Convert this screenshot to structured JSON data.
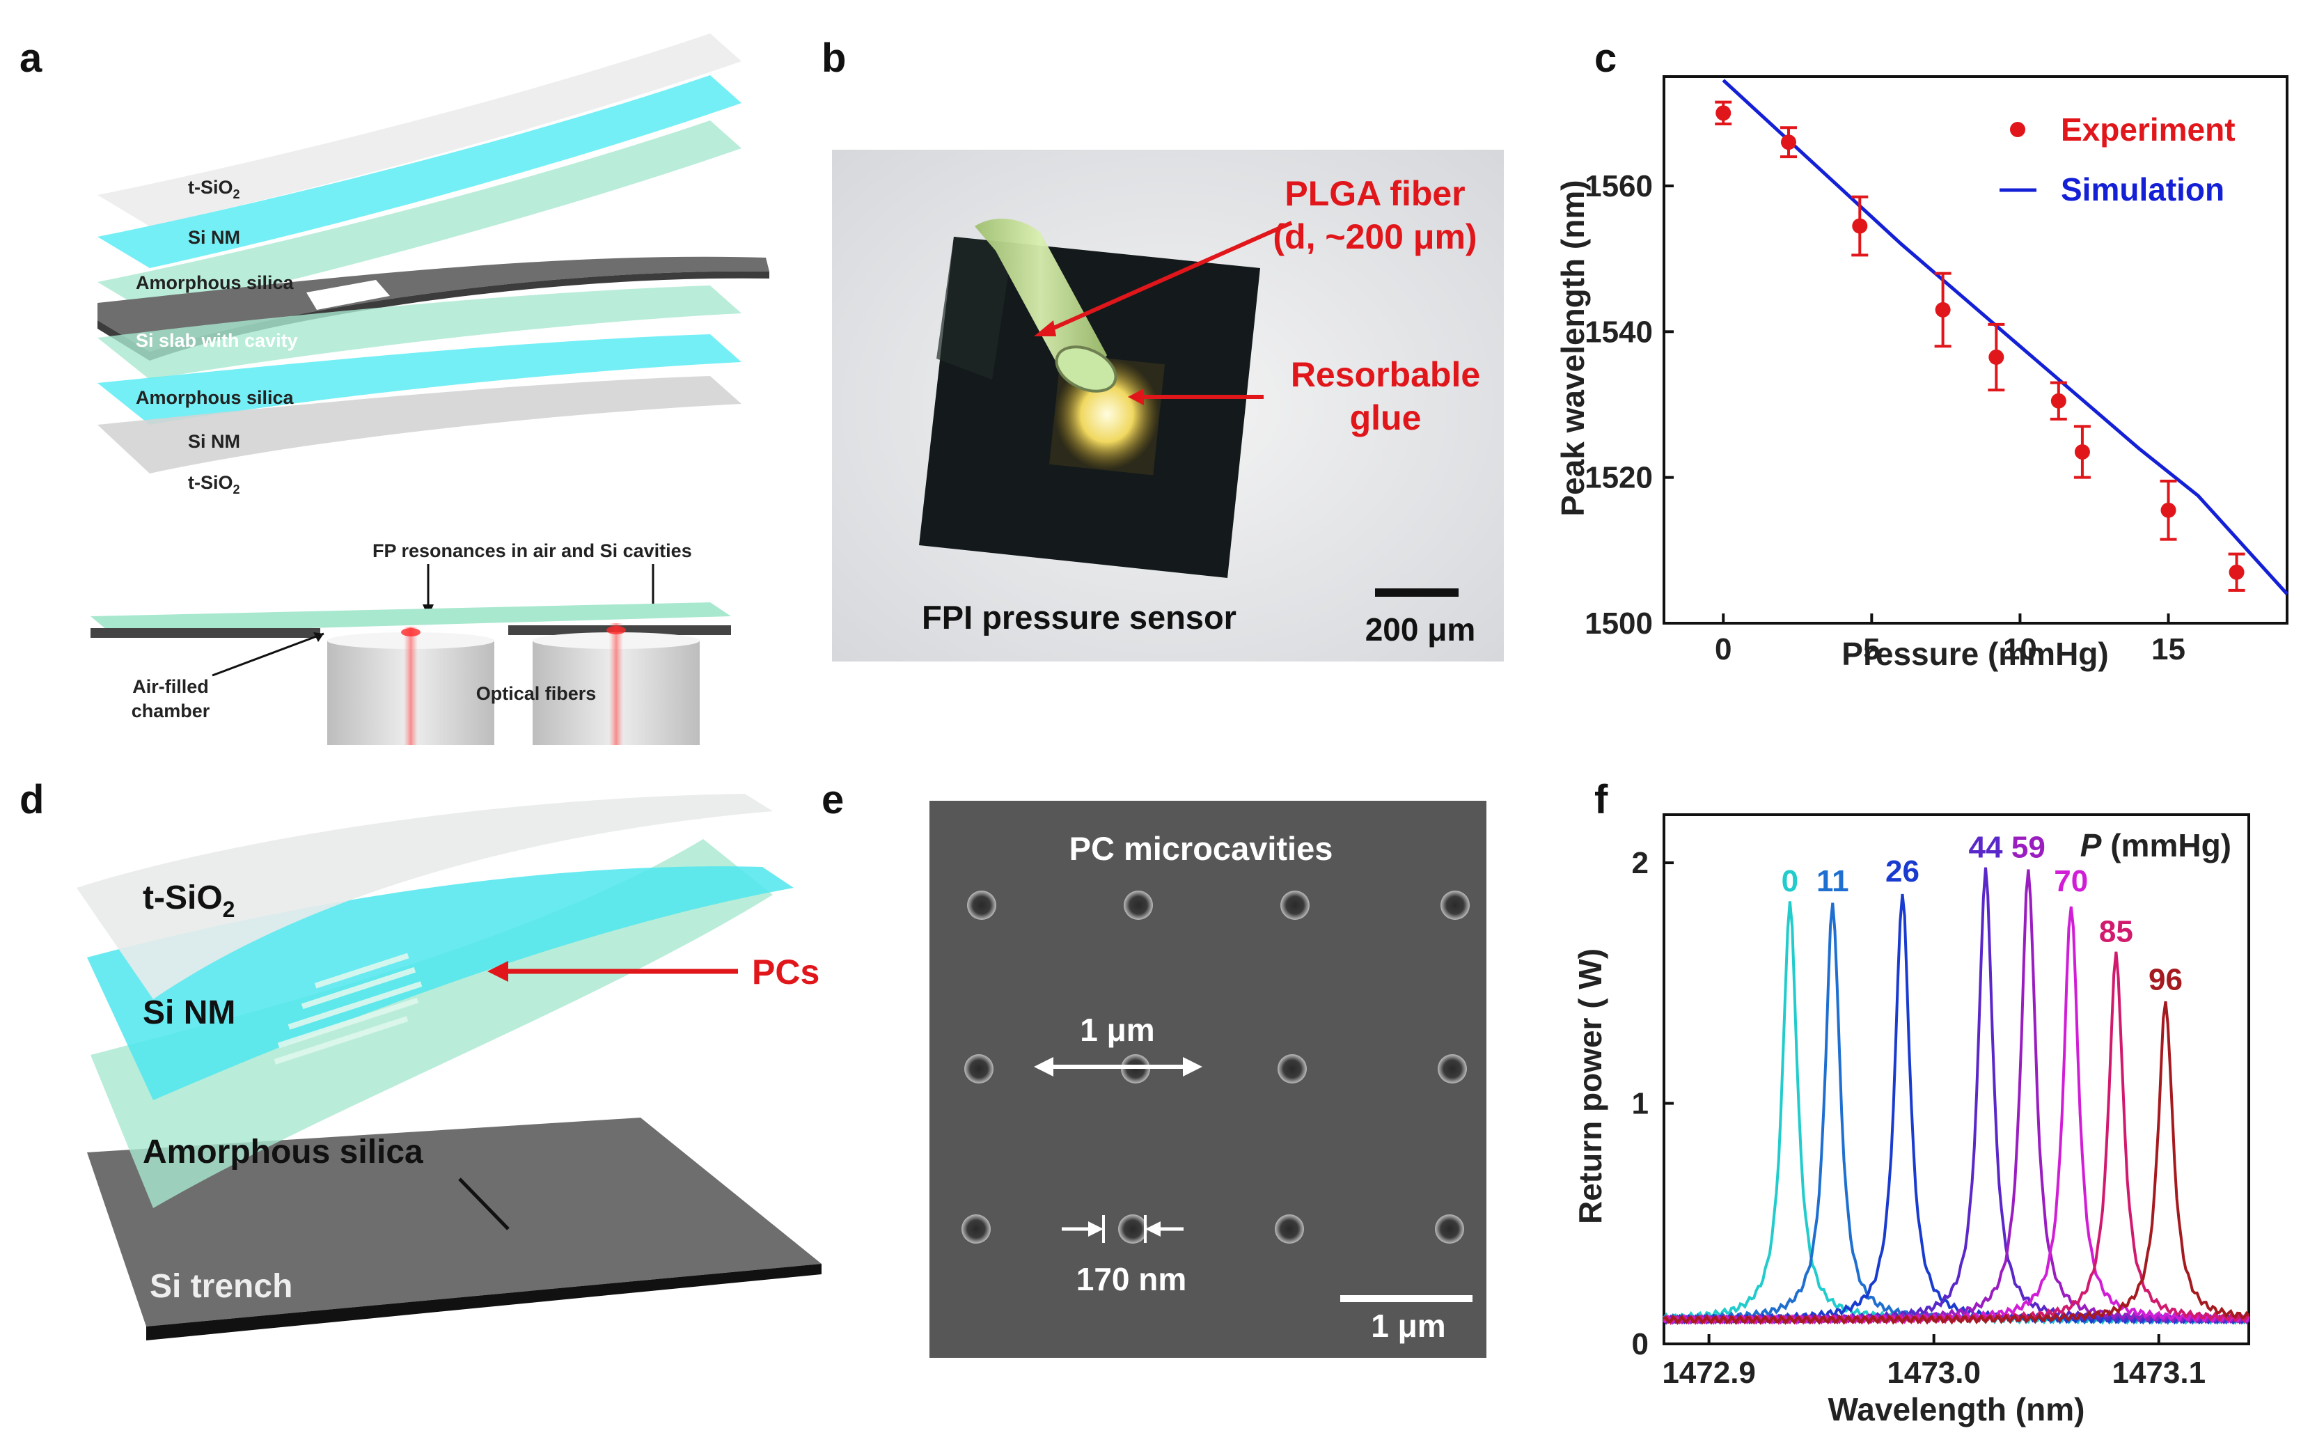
{
  "panel_labels": {
    "a": "a",
    "b": "b",
    "c": "c",
    "d": "d",
    "e": "e",
    "f": "f"
  },
  "panel_a": {
    "layers": [
      "t-SiO",
      "Si NM",
      "Amorphous silica",
      "Si slab with cavity",
      "Amorphous silica",
      "Si NM",
      "t-SiO"
    ],
    "subscript": "2",
    "fp_label": "FP resonances in air and Si cavities",
    "air_label_1": "Air-filled",
    "air_label_2": "chamber",
    "fibers_label": "Optical fibers"
  },
  "panel_b": {
    "fiber_label_1": "PLGA fiber",
    "fiber_label_2": "(d, ~200 μm)",
    "glue_label_1": "Resorbable",
    "glue_label_2": "glue",
    "caption": "FPI pressure sensor",
    "scale": "200 μm",
    "colors": {
      "annotation": "#e0161b"
    }
  },
  "panel_d": {
    "layer_tsio": "t-SiO",
    "subscript": "2",
    "layer_sinm": "Si NM",
    "layer_silica": "Amorphous silica",
    "layer_trench": "Si trench",
    "pcs_label": "PCs"
  },
  "panel_e": {
    "title": "PC microcavities",
    "pitch": "1 μm",
    "diameter": "170 nm",
    "scale": "1 μm"
  },
  "chart_data": [
    {
      "type": "scatter",
      "panel": "c",
      "xlabel": "Pressure (mmHg)",
      "ylabel": "Peak wavelength (nm)",
      "xlim": [
        -2,
        19
      ],
      "ylim": [
        1500,
        1575
      ],
      "xticks": [
        0,
        5,
        10,
        15
      ],
      "yticks": [
        1500,
        1520,
        1540,
        1560
      ],
      "legend_position": "top-right",
      "series": [
        {
          "name": "Experiment",
          "color": "#e0161b",
          "x": [
            0,
            2.2,
            4.6,
            7.4,
            9.2,
            11.3,
            12.1,
            15.0,
            17.3
          ],
          "y": [
            1570,
            1566,
            1554.5,
            1543,
            1536.5,
            1530.5,
            1523.5,
            1515.5,
            1507
          ],
          "err": [
            1.5,
            2,
            4,
            5,
            4.5,
            2.5,
            3.5,
            4,
            2.5
          ]
        },
        {
          "name": "Simulation",
          "color": "#1420d6",
          "x": [
            0,
            2,
            4,
            6,
            8,
            10,
            12,
            14,
            16,
            19
          ],
          "y": [
            1574.5,
            1567,
            1559.5,
            1552,
            1545,
            1538,
            1531,
            1524,
            1517.5,
            1504
          ]
        }
      ]
    },
    {
      "type": "line",
      "panel": "f",
      "xlabel": "Wavelength (nm)",
      "ylabel": "Return power ( W)",
      "legend_title": "P (mmHg)",
      "xlim": [
        1472.88,
        1473.14
      ],
      "ylim": [
        0,
        2.2
      ],
      "xticks": [
        1472.9,
        1473.0,
        1473.1
      ],
      "xtick_labels": [
        "1472.9",
        "1473.0",
        "1473.1"
      ],
      "yticks": [
        0,
        1,
        2
      ],
      "baseline": 0.1,
      "width": 0.004,
      "series": [
        {
          "name": "0",
          "color": "#22cccc",
          "center": 1472.936,
          "peak": 1.83
        },
        {
          "name": "11",
          "color": "#1f6fd0",
          "center": 1472.955,
          "peak": 1.83
        },
        {
          "name": "26",
          "color": "#1a3bcf",
          "center": 1472.986,
          "peak": 1.87
        },
        {
          "name": "44",
          "color": "#5a28c9",
          "center": 1473.023,
          "peak": 1.97
        },
        {
          "name": "59",
          "color": "#9a1dc0",
          "center": 1473.042,
          "peak": 1.97
        },
        {
          "name": "70",
          "color": "#d11ed6",
          "center": 1473.061,
          "peak": 1.83
        },
        {
          "name": "85",
          "color": "#d11a6d",
          "center": 1473.081,
          "peak": 1.62
        },
        {
          "name": "96",
          "color": "#a51a1f",
          "center": 1473.103,
          "peak": 1.42
        }
      ]
    }
  ]
}
